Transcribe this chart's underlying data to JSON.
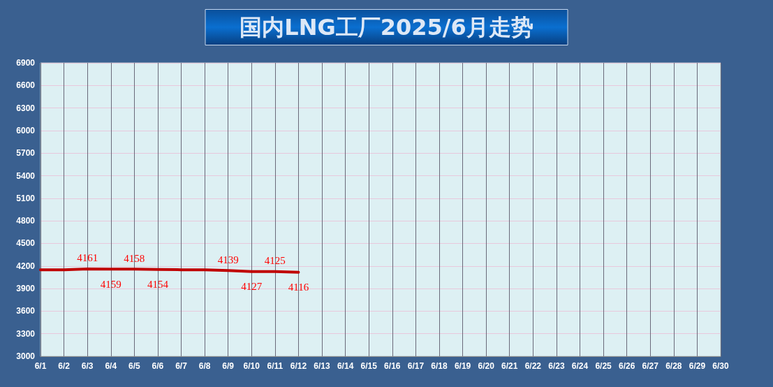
{
  "chart_data": {
    "type": "line",
    "title": "国内LNG工厂2025/6月走势",
    "categories": [
      "6/1",
      "6/2",
      "6/3",
      "6/4",
      "6/5",
      "6/6",
      "6/7",
      "6/8",
      "6/9",
      "6/10",
      "6/11",
      "6/12",
      "6/13",
      "6/14",
      "6/15",
      "6/16",
      "6/17",
      "6/18",
      "6/19",
      "6/20",
      "6/21",
      "6/22",
      "6/23",
      "6/24",
      "6/25",
      "6/26",
      "6/27",
      "6/28",
      "6/29",
      "6/30"
    ],
    "series": [
      {
        "color": "#c00000",
        "values": [
          4150,
          4150,
          4161,
          4159,
          4158,
          4154,
          4150,
          4150,
          4139,
          4127,
          4125,
          4116,
          null,
          null,
          null,
          null,
          null,
          null,
          null,
          null,
          null,
          null,
          null,
          null,
          null,
          null,
          null,
          null,
          null,
          null
        ],
        "value_labels": [
          null,
          null,
          "4161",
          "4159",
          "4158",
          "4154",
          null,
          null,
          "4139",
          "4127",
          "4125",
          "4116",
          null,
          null,
          null,
          null,
          null,
          null,
          null,
          null,
          null,
          null,
          null,
          null,
          null,
          null,
          null,
          null,
          null,
          null
        ]
      }
    ],
    "ylim": [
      3000,
      6900
    ],
    "yticks": [
      3000,
      3300,
      3600,
      3900,
      4200,
      4500,
      4800,
      5100,
      5400,
      5700,
      6000,
      6300,
      6600,
      6900
    ],
    "grid": true,
    "marker": "none",
    "line_style": "solid"
  }
}
